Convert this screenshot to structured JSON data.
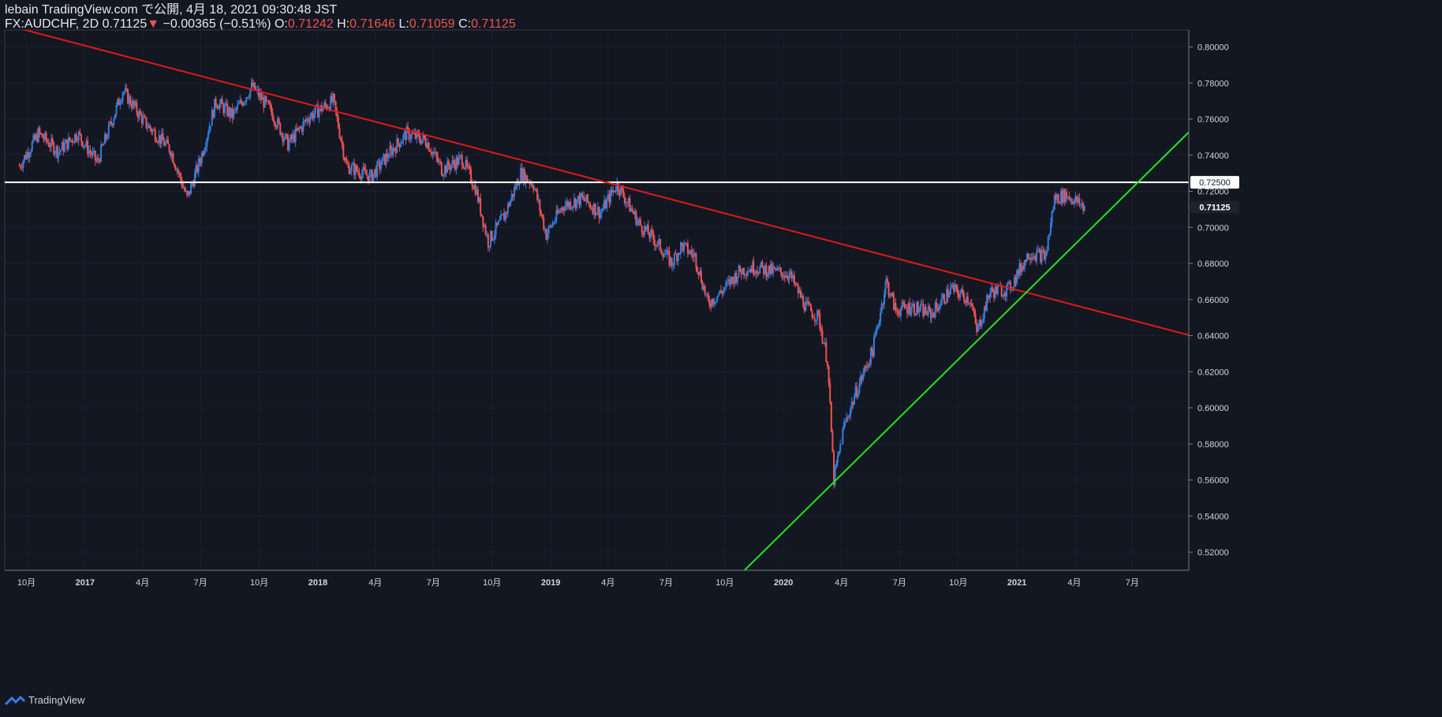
{
  "header": {
    "published": "lebain TradingView.com で公開, 4月 18, 2021 09:30:48 JST",
    "symbol": "FX:AUDCHF, 2D",
    "last": "0.71125",
    "change_arrow": "▼",
    "change": "−0.00365 (−0.51%)",
    "o_label": "O:",
    "o_value": "0.71242",
    "h_label": "H:",
    "h_value": "0.71646",
    "l_label": "L:",
    "l_value": "0.71059",
    "c_label": "C:",
    "c_value": "0.71125"
  },
  "footer": {
    "brand": "TradingView",
    "logo_icon": "tradingview-logo-icon"
  },
  "colors": {
    "background": "#131722",
    "up": "#2f7fe0",
    "down": "#ef5350",
    "resistance": "#e01818",
    "support": "#22e61c",
    "level": "#ffffff"
  },
  "chart_data": {
    "type": "candlestick",
    "symbol": "FX:AUDCHF",
    "timeframe": "2D",
    "y_range": [
      0.51,
      0.81
    ],
    "y_ticks": [
      "0.80000",
      "0.78000",
      "0.76000",
      "0.74000",
      "0.72000",
      "0.70000",
      "0.68000",
      "0.66000",
      "0.64000",
      "0.62000",
      "0.60000",
      "0.58000",
      "0.56000",
      "0.54000",
      "0.52000"
    ],
    "x_ticks": [
      {
        "label": "10月",
        "date": "2016-10"
      },
      {
        "label": "2017",
        "date": "2017-01"
      },
      {
        "label": "4月",
        "date": "2017-04"
      },
      {
        "label": "7月",
        "date": "2017-07"
      },
      {
        "label": "10月",
        "date": "2017-10"
      },
      {
        "label": "2018",
        "date": "2018-01"
      },
      {
        "label": "4月",
        "date": "2018-04"
      },
      {
        "label": "7月",
        "date": "2018-07"
      },
      {
        "label": "10月",
        "date": "2018-10"
      },
      {
        "label": "2019",
        "date": "2019-01"
      },
      {
        "label": "4月",
        "date": "2019-04"
      },
      {
        "label": "7月",
        "date": "2019-07"
      },
      {
        "label": "10月",
        "date": "2019-10"
      },
      {
        "label": "2020",
        "date": "2020-01"
      },
      {
        "label": "4月",
        "date": "2020-04"
      },
      {
        "label": "7月",
        "date": "2020-07"
      },
      {
        "label": "10月",
        "date": "2020-10"
      },
      {
        "label": "2021",
        "date": "2021-01"
      },
      {
        "label": "4月",
        "date": "2021-04"
      },
      {
        "label": "7月",
        "date": "2021-07"
      }
    ],
    "price_path": [
      {
        "date": "2016-09-20",
        "close": 0.734
      },
      {
        "date": "2016-10-20",
        "close": 0.752
      },
      {
        "date": "2016-11-20",
        "close": 0.742
      },
      {
        "date": "2016-12-20",
        "close": 0.752
      },
      {
        "date": "2017-01-20",
        "close": 0.736
      },
      {
        "date": "2017-03-01",
        "close": 0.776
      },
      {
        "date": "2017-04-05",
        "close": 0.758
      },
      {
        "date": "2017-05-15",
        "close": 0.743
      },
      {
        "date": "2017-06-10",
        "close": 0.716
      },
      {
        "date": "2017-07-01",
        "close": 0.738
      },
      {
        "date": "2017-07-25",
        "close": 0.77
      },
      {
        "date": "2017-08-20",
        "close": 0.762
      },
      {
        "date": "2017-09-20",
        "close": 0.778
      },
      {
        "date": "2017-10-20",
        "close": 0.764
      },
      {
        "date": "2017-11-15",
        "close": 0.746
      },
      {
        "date": "2017-12-20",
        "close": 0.762
      },
      {
        "date": "2018-01-25",
        "close": 0.77
      },
      {
        "date": "2018-02-15",
        "close": 0.734
      },
      {
        "date": "2018-03-25",
        "close": 0.728
      },
      {
        "date": "2018-04-25",
        "close": 0.742
      },
      {
        "date": "2018-05-20",
        "close": 0.752
      },
      {
        "date": "2018-06-20",
        "close": 0.748
      },
      {
        "date": "2018-07-15",
        "close": 0.732
      },
      {
        "date": "2018-08-15",
        "close": 0.738
      },
      {
        "date": "2018-09-05",
        "close": 0.722
      },
      {
        "date": "2018-09-25",
        "close": 0.692
      },
      {
        "date": "2018-10-20",
        "close": 0.706
      },
      {
        "date": "2018-11-15",
        "close": 0.73
      },
      {
        "date": "2018-12-05",
        "close": 0.724
      },
      {
        "date": "2018-12-25",
        "close": 0.696
      },
      {
        "date": "2019-01-20",
        "close": 0.712
      },
      {
        "date": "2019-02-20",
        "close": 0.716
      },
      {
        "date": "2019-03-20",
        "close": 0.708
      },
      {
        "date": "2019-04-15",
        "close": 0.724
      },
      {
        "date": "2019-05-20",
        "close": 0.702
      },
      {
        "date": "2019-06-20",
        "close": 0.69
      },
      {
        "date": "2019-07-10",
        "close": 0.68
      },
      {
        "date": "2019-07-25",
        "close": 0.69
      },
      {
        "date": "2019-08-15",
        "close": 0.684
      },
      {
        "date": "2019-09-05",
        "close": 0.658
      },
      {
        "date": "2019-09-25",
        "close": 0.664
      },
      {
        "date": "2019-10-25",
        "close": 0.676
      },
      {
        "date": "2019-11-15",
        "close": 0.678
      },
      {
        "date": "2019-12-10",
        "close": 0.676
      },
      {
        "date": "2020-01-10",
        "close": 0.674
      },
      {
        "date": "2020-02-05",
        "close": 0.656
      },
      {
        "date": "2020-02-25",
        "close": 0.65
      },
      {
        "date": "2020-03-10",
        "close": 0.626
      },
      {
        "date": "2020-03-20",
        "close": 0.56
      },
      {
        "date": "2020-04-05",
        "close": 0.59
      },
      {
        "date": "2020-04-25",
        "close": 0.61
      },
      {
        "date": "2020-05-20",
        "close": 0.632
      },
      {
        "date": "2020-06-10",
        "close": 0.67
      },
      {
        "date": "2020-06-25",
        "close": 0.654
      },
      {
        "date": "2020-07-20",
        "close": 0.656
      },
      {
        "date": "2020-08-20",
        "close": 0.652
      },
      {
        "date": "2020-09-20",
        "close": 0.666
      },
      {
        "date": "2020-10-20",
        "close": 0.66
      },
      {
        "date": "2020-10-30",
        "close": 0.642
      },
      {
        "date": "2020-11-20",
        "close": 0.664
      },
      {
        "date": "2020-12-20",
        "close": 0.666
      },
      {
        "date": "2021-01-20",
        "close": 0.686
      },
      {
        "date": "2021-02-15",
        "close": 0.684
      },
      {
        "date": "2021-03-01",
        "close": 0.716
      },
      {
        "date": "2021-03-20",
        "close": 0.718
      },
      {
        "date": "2021-04-05",
        "close": 0.714
      },
      {
        "date": "2021-04-18",
        "close": 0.711
      }
    ],
    "horizontal_line": {
      "price": 0.725,
      "label": "0.72500"
    },
    "last_price_label": "0.71125",
    "trendlines": [
      {
        "name": "resistance",
        "from": {
          "date": "2016-09-01",
          "price": 0.812
        },
        "to": {
          "date": "2021-10-01",
          "price": 0.64
        }
      },
      {
        "name": "support",
        "from": {
          "date": "2019-11-01",
          "price": 0.51
        },
        "to": {
          "date": "2021-10-01",
          "price": 0.754
        }
      }
    ],
    "grid": true
  }
}
